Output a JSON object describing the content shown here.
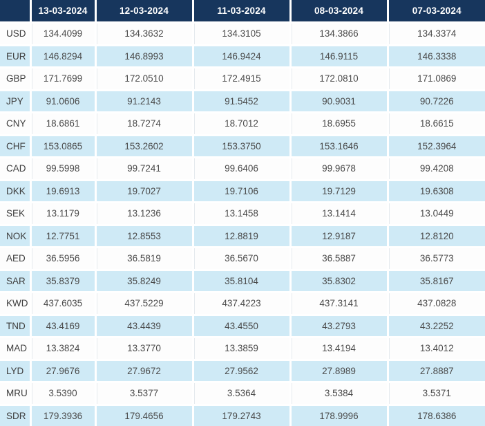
{
  "colors": {
    "header_bg": "#17365d",
    "header_text": "#ffffff",
    "row_blue": "#cfeaf6",
    "row_white": "#fdfdfd",
    "value_text": "#4a4a4a",
    "code_text": "#3d3d3d",
    "divider": "#ffffff",
    "faint_line": "#e4eaee"
  },
  "table": {
    "columns": [
      "",
      "13-03-2024",
      "12-03-2024",
      "11-03-2024",
      "08-03-2024",
      "07-03-2024"
    ],
    "rows": [
      {
        "code": "USD",
        "values": [
          "134.4099",
          "134.3632",
          "134.3105",
          "134.3866",
          "134.3374"
        ]
      },
      {
        "code": "EUR",
        "values": [
          "146.8294",
          "146.8993",
          "146.9424",
          "146.9115",
          "146.3338"
        ]
      },
      {
        "code": "GBP",
        "values": [
          "171.7699",
          "172.0510",
          "172.4915",
          "172.0810",
          "171.0869"
        ]
      },
      {
        "code": "JPY",
        "values": [
          "91.0606",
          "91.2143",
          "91.5452",
          "90.9031",
          "90.7226"
        ]
      },
      {
        "code": "CNY",
        "values": [
          "18.6861",
          "18.7274",
          "18.7012",
          "18.6955",
          "18.6615"
        ]
      },
      {
        "code": "CHF",
        "values": [
          "153.0865",
          "153.2602",
          "153.3750",
          "153.1646",
          "152.3964"
        ]
      },
      {
        "code": "CAD",
        "values": [
          "99.5998",
          "99.7241",
          "99.6406",
          "99.9678",
          "99.4208"
        ]
      },
      {
        "code": "DKK",
        "values": [
          "19.6913",
          "19.7027",
          "19.7106",
          "19.7129",
          "19.6308"
        ]
      },
      {
        "code": "SEK",
        "values": [
          "13.1179",
          "13.1236",
          "13.1458",
          "13.1414",
          "13.0449"
        ]
      },
      {
        "code": "NOK",
        "values": [
          "12.7751",
          "12.8553",
          "12.8819",
          "12.9187",
          "12.8120"
        ]
      },
      {
        "code": "AED",
        "values": [
          "36.5956",
          "36.5819",
          "36.5670",
          "36.5887",
          "36.5773"
        ]
      },
      {
        "code": "SAR",
        "values": [
          "35.8379",
          "35.8249",
          "35.8104",
          "35.8302",
          "35.8167"
        ]
      },
      {
        "code": "KWD",
        "values": [
          "437.6035",
          "437.5229",
          "437.4223",
          "437.3141",
          "437.0828"
        ]
      },
      {
        "code": "TND",
        "values": [
          "43.4169",
          "43.4439",
          "43.4550",
          "43.2793",
          "43.2252"
        ]
      },
      {
        "code": "MAD",
        "values": [
          "13.3824",
          "13.3770",
          "13.3859",
          "13.4194",
          "13.4012"
        ]
      },
      {
        "code": "LYD",
        "values": [
          "27.9676",
          "27.9672",
          "27.9562",
          "27.8989",
          "27.8887"
        ]
      },
      {
        "code": "MRU",
        "values": [
          "3.5390",
          "3.5377",
          "3.5364",
          "3.5384",
          "3.5371"
        ]
      },
      {
        "code": "SDR",
        "values": [
          "179.3936",
          "179.4656",
          "179.2743",
          "178.9996",
          "178.6386"
        ]
      }
    ]
  }
}
